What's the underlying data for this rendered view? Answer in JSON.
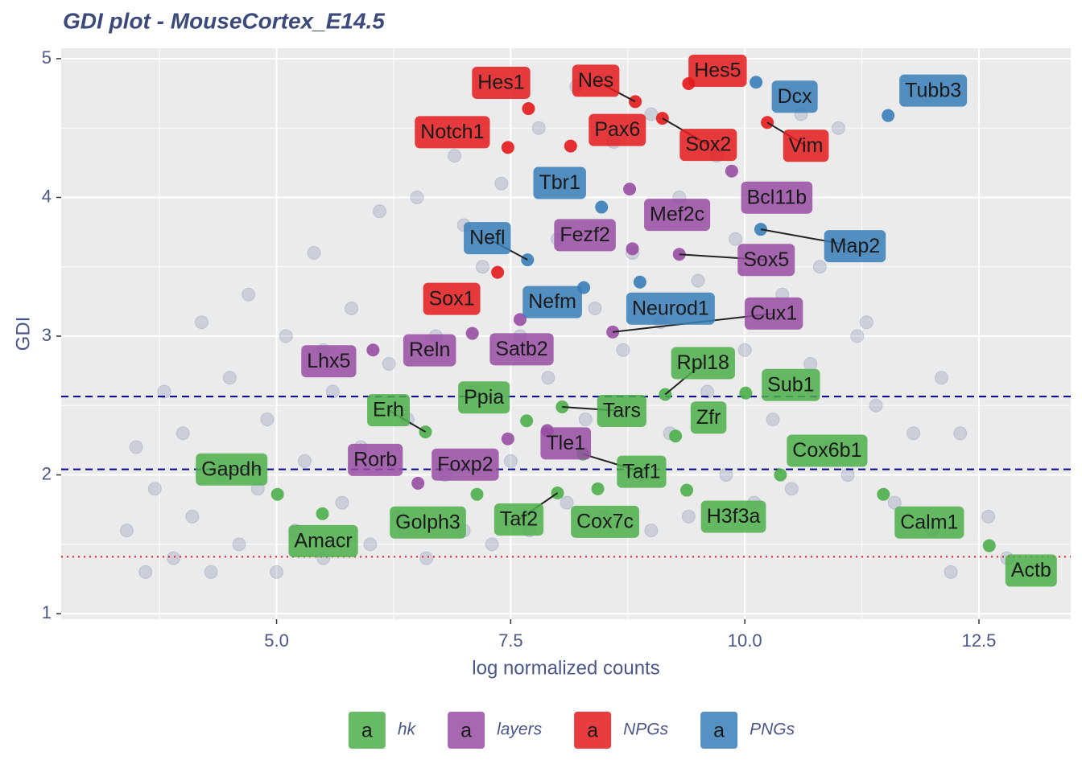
{
  "chart_data": {
    "type": "scatter",
    "title": "GDI plot - MouseCortex_E14.5",
    "x_label": "log normalized counts",
    "y_label": "GDI",
    "xlim": [
      2.7,
      13.48
    ],
    "ylim": [
      0.96,
      5.075
    ],
    "xticks": [
      {
        "value": 5,
        "label": "5.0"
      },
      7.5,
      {
        "value": 10,
        "label": "10.0"
      },
      12.5
    ],
    "yticks": [
      1,
      2,
      3,
      4,
      5
    ],
    "grid": true,
    "legend_position": "bottom",
    "legend_glyph": "a",
    "hlines": [
      {
        "value": 2.565,
        "style": "dashed",
        "color": "#00008B"
      },
      {
        "value": 2.04,
        "style": "dashed",
        "color": "#00008B"
      },
      {
        "value": 1.41,
        "style": "dotted",
        "color": "#E41A1C"
      }
    ],
    "background": {
      "color": "#8390B4",
      "x": [
        3.4,
        3.5,
        3.6,
        3.7,
        3.8,
        3.9,
        4.0,
        4.1,
        4.2,
        4.3,
        4.4,
        4.5,
        4.6,
        4.7,
        4.8,
        4.9,
        5.0,
        5.1,
        5.2,
        5.3,
        5.4,
        5.5,
        5.6,
        5.7,
        5.8,
        5.9,
        6.0,
        6.1,
        6.2,
        6.3,
        6.4,
        6.5,
        6.6,
        6.7,
        6.8,
        6.9,
        7.0,
        7.1,
        7.2,
        7.3,
        7.4,
        7.5,
        7.6,
        7.7,
        7.8,
        7.9,
        8.0,
        8.1,
        8.2,
        8.3,
        8.4,
        8.5,
        8.6,
        8.7,
        8.8,
        8.9,
        9.0,
        9.1,
        9.2,
        9.3,
        9.4,
        9.5,
        9.6,
        9.7,
        9.8,
        9.9,
        10.0,
        10.1,
        10.2,
        10.3,
        10.4,
        10.5,
        10.6,
        10.7,
        10.8,
        10.9,
        11.0,
        11.1,
        11.2,
        11.4,
        11.6,
        11.8,
        12.0,
        12.1,
        12.2,
        12.3,
        12.6,
        12.8,
        11.3,
        9.0,
        7.0,
        5.5
      ],
      "y": [
        1.6,
        2.2,
        1.3,
        1.9,
        2.6,
        1.4,
        2.3,
        1.7,
        3.1,
        1.3,
        2.0,
        2.7,
        1.5,
        3.3,
        1.9,
        2.4,
        1.3,
        3.0,
        1.6,
        2.1,
        3.6,
        1.4,
        2.6,
        1.8,
        3.2,
        2.2,
        1.5,
        3.9,
        2.8,
        1.7,
        2.4,
        4.0,
        1.4,
        3.0,
        2.0,
        4.3,
        1.6,
        2.6,
        3.5,
        1.5,
        4.1,
        2.1,
        3.0,
        1.6,
        4.5,
        2.7,
        3.7,
        1.8,
        4.8,
        2.4,
        3.2,
        1.7,
        4.4,
        2.9,
        3.6,
        2.0,
        4.6,
        3.1,
        2.3,
        4.0,
        1.7,
        3.4,
        2.6,
        4.3,
        2.0,
        3.7,
        2.9,
        1.8,
        4.0,
        2.4,
        3.3,
        1.9,
        4.6,
        2.8,
        3.5,
        2.2,
        4.5,
        2.0,
        3.0,
        2.5,
        1.8,
        2.3,
        1.6,
        2.7,
        1.3,
        2.3,
        1.7,
        1.4,
        3.1,
        1.6,
        3.8,
        2.9
      ]
    },
    "series": [
      {
        "name": "hk",
        "color": "#4DAF4A",
        "labels": [
          "Rpl18",
          "Sub1",
          "Tars",
          "Ppia",
          "Erh",
          "Zfr",
          "Taf1",
          "Cox6b1",
          "Gapdh",
          "Golph3",
          "Taf2",
          "Cox7c",
          "H3f3a",
          "Calm1",
          "Amacr",
          "Actb"
        ],
        "x": [
          9.15,
          10.01,
          8.05,
          7.67,
          6.59,
          9.26,
          8.27,
          10.38,
          5.01,
          7.14,
          8.0,
          8.43,
          9.38,
          11.48,
          5.49,
          12.61
        ],
        "y": [
          2.58,
          2.59,
          2.49,
          2.39,
          2.31,
          2.28,
          2.15,
          2.0,
          1.86,
          1.86,
          1.87,
          1.9,
          1.89,
          1.86,
          1.72,
          1.49
        ]
      },
      {
        "name": "layers",
        "color": "#984EA3",
        "labels": [
          "Bcl11b",
          "Mef2c",
          "Fezf2",
          "Sox5",
          "Cux1",
          "Satb2",
          "Reln",
          "Lhx5",
          "Rorb",
          "Foxp2",
          "Tle1"
        ],
        "x": [
          9.86,
          8.77,
          8.8,
          9.3,
          8.59,
          7.6,
          7.09,
          6.03,
          6.51,
          7.47,
          7.89
        ],
        "y": [
          4.19,
          4.06,
          3.63,
          3.59,
          3.03,
          3.12,
          3.02,
          2.9,
          1.94,
          2.26,
          2.32
        ]
      },
      {
        "name": "NPGs",
        "color": "#E41A1C",
        "labels": [
          "Hes1",
          "Nes",
          "Hes5",
          "Pax6",
          "Sox2",
          "Notch1",
          "Vim",
          "Sox1"
        ],
        "x": [
          7.69,
          8.83,
          9.4,
          8.14,
          9.12,
          7.47,
          10.24,
          7.36
        ],
        "y": [
          4.64,
          4.69,
          4.82,
          4.37,
          4.57,
          4.36,
          4.54,
          3.46
        ]
      },
      {
        "name": "PNGs",
        "color": "#377EB8",
        "labels": [
          "Dcx",
          "Tubb3",
          "Tbr1",
          "Map2",
          "Nefl",
          "Nefm",
          "Neurod1"
        ],
        "x": [
          10.12,
          11.53,
          8.47,
          10.17,
          7.68,
          8.28,
          8.88
        ],
        "y": [
          4.83,
          4.59,
          3.93,
          3.77,
          3.55,
          3.35,
          3.39
        ]
      }
    ]
  }
}
